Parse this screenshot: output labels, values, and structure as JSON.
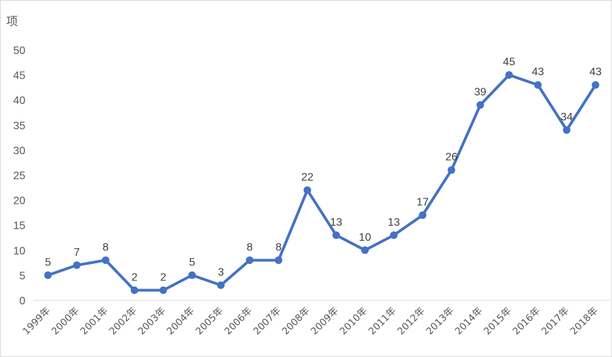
{
  "chart_data": {
    "type": "line",
    "title": "",
    "xlabel": "",
    "ylabel": "项",
    "ylim": [
      0,
      50
    ],
    "yticks": [
      0,
      5,
      10,
      15,
      20,
      25,
      30,
      35,
      40,
      45,
      50
    ],
    "grid": false,
    "legend": "none",
    "categories": [
      "1999年",
      "2000年",
      "2001年",
      "2002年",
      "2003年",
      "2004年",
      "2005年",
      "2006年",
      "2007年",
      "2008年",
      "2009年",
      "2010年",
      "2011年",
      "2012年",
      "2013年",
      "2014年",
      "2015年",
      "2016年",
      "2017年",
      "2018年"
    ],
    "series": [
      {
        "values": [
          5,
          7,
          8,
          2,
          2,
          5,
          3,
          8,
          8,
          22,
          13,
          10,
          13,
          17,
          26,
          39,
          45,
          43,
          34,
          43
        ],
        "color": "#4472c4"
      }
    ]
  }
}
